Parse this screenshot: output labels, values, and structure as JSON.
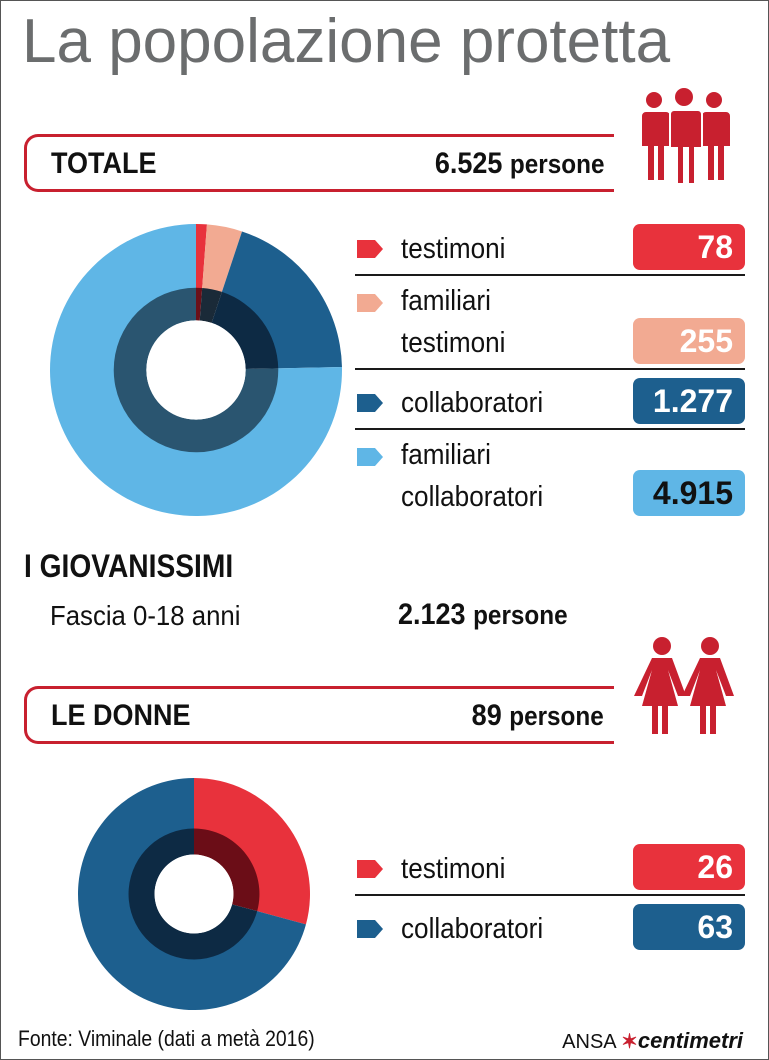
{
  "title": "La popolazione protetta",
  "totale": {
    "label": "TOTALE",
    "value": "6.525",
    "unit": "persone"
  },
  "donne": {
    "label": "LE DONNE",
    "value": "89",
    "unit": "persone"
  },
  "giovanissimi": {
    "heading": "I GIOVANISSIMI",
    "range": "Fascia 0-18 anni",
    "value": "2.123",
    "unit": "persone"
  },
  "legend_totale": [
    {
      "line1": "testimoni",
      "line2": "",
      "value": "78",
      "color": "#e8323c",
      "text_color": "#ffffff"
    },
    {
      "line1": "familiari",
      "line2": "testimoni",
      "value": "255",
      "color": "#f2aa92",
      "text_color": "#ffffff"
    },
    {
      "line1": "collaboratori",
      "line2": "",
      "value": "1.277",
      "color": "#1d5f8e",
      "text_color": "#ffffff"
    },
    {
      "line1": "familiari",
      "line2": "collaboratori",
      "value": "4.915",
      "color": "#5fb6e6",
      "text_color": "#111111"
    }
  ],
  "legend_donne": [
    {
      "line1": "testimoni",
      "value": "26",
      "color": "#e8323c"
    },
    {
      "line1": "collaboratori",
      "value": "63",
      "color": "#1d5f8e"
    }
  ],
  "footer": {
    "source": "Fonte: Viminale (dati a metà 2016)",
    "agency": "ANSA",
    "brand": "centimetri"
  },
  "icons": {
    "group": "people-group-icon",
    "women": "women-icon"
  },
  "chart_data": [
    {
      "type": "pie",
      "title": "TOTALE",
      "categories": [
        "testimoni",
        "familiari testimoni",
        "collaboratori",
        "familiari collaboratori"
      ],
      "values": [
        78,
        255,
        1277,
        4915
      ],
      "colors": [
        "#e8323c",
        "#f2aa92",
        "#1d5f8e",
        "#5fb6e6"
      ],
      "inner_colors": [
        "#6b1019",
        "#1a2a38",
        "#0d2a44",
        "#2a5570"
      ],
      "start_angle": 0,
      "legend_position": "right"
    },
    {
      "type": "pie",
      "title": "LE DONNE",
      "categories": [
        "testimoni",
        "collaboratori"
      ],
      "values": [
        26,
        63
      ],
      "colors": [
        "#e8323c",
        "#1d5f8e"
      ],
      "inner_colors": [
        "#6b0d17",
        "#0d2a44"
      ],
      "start_angle": 0,
      "legend_position": "right"
    }
  ]
}
